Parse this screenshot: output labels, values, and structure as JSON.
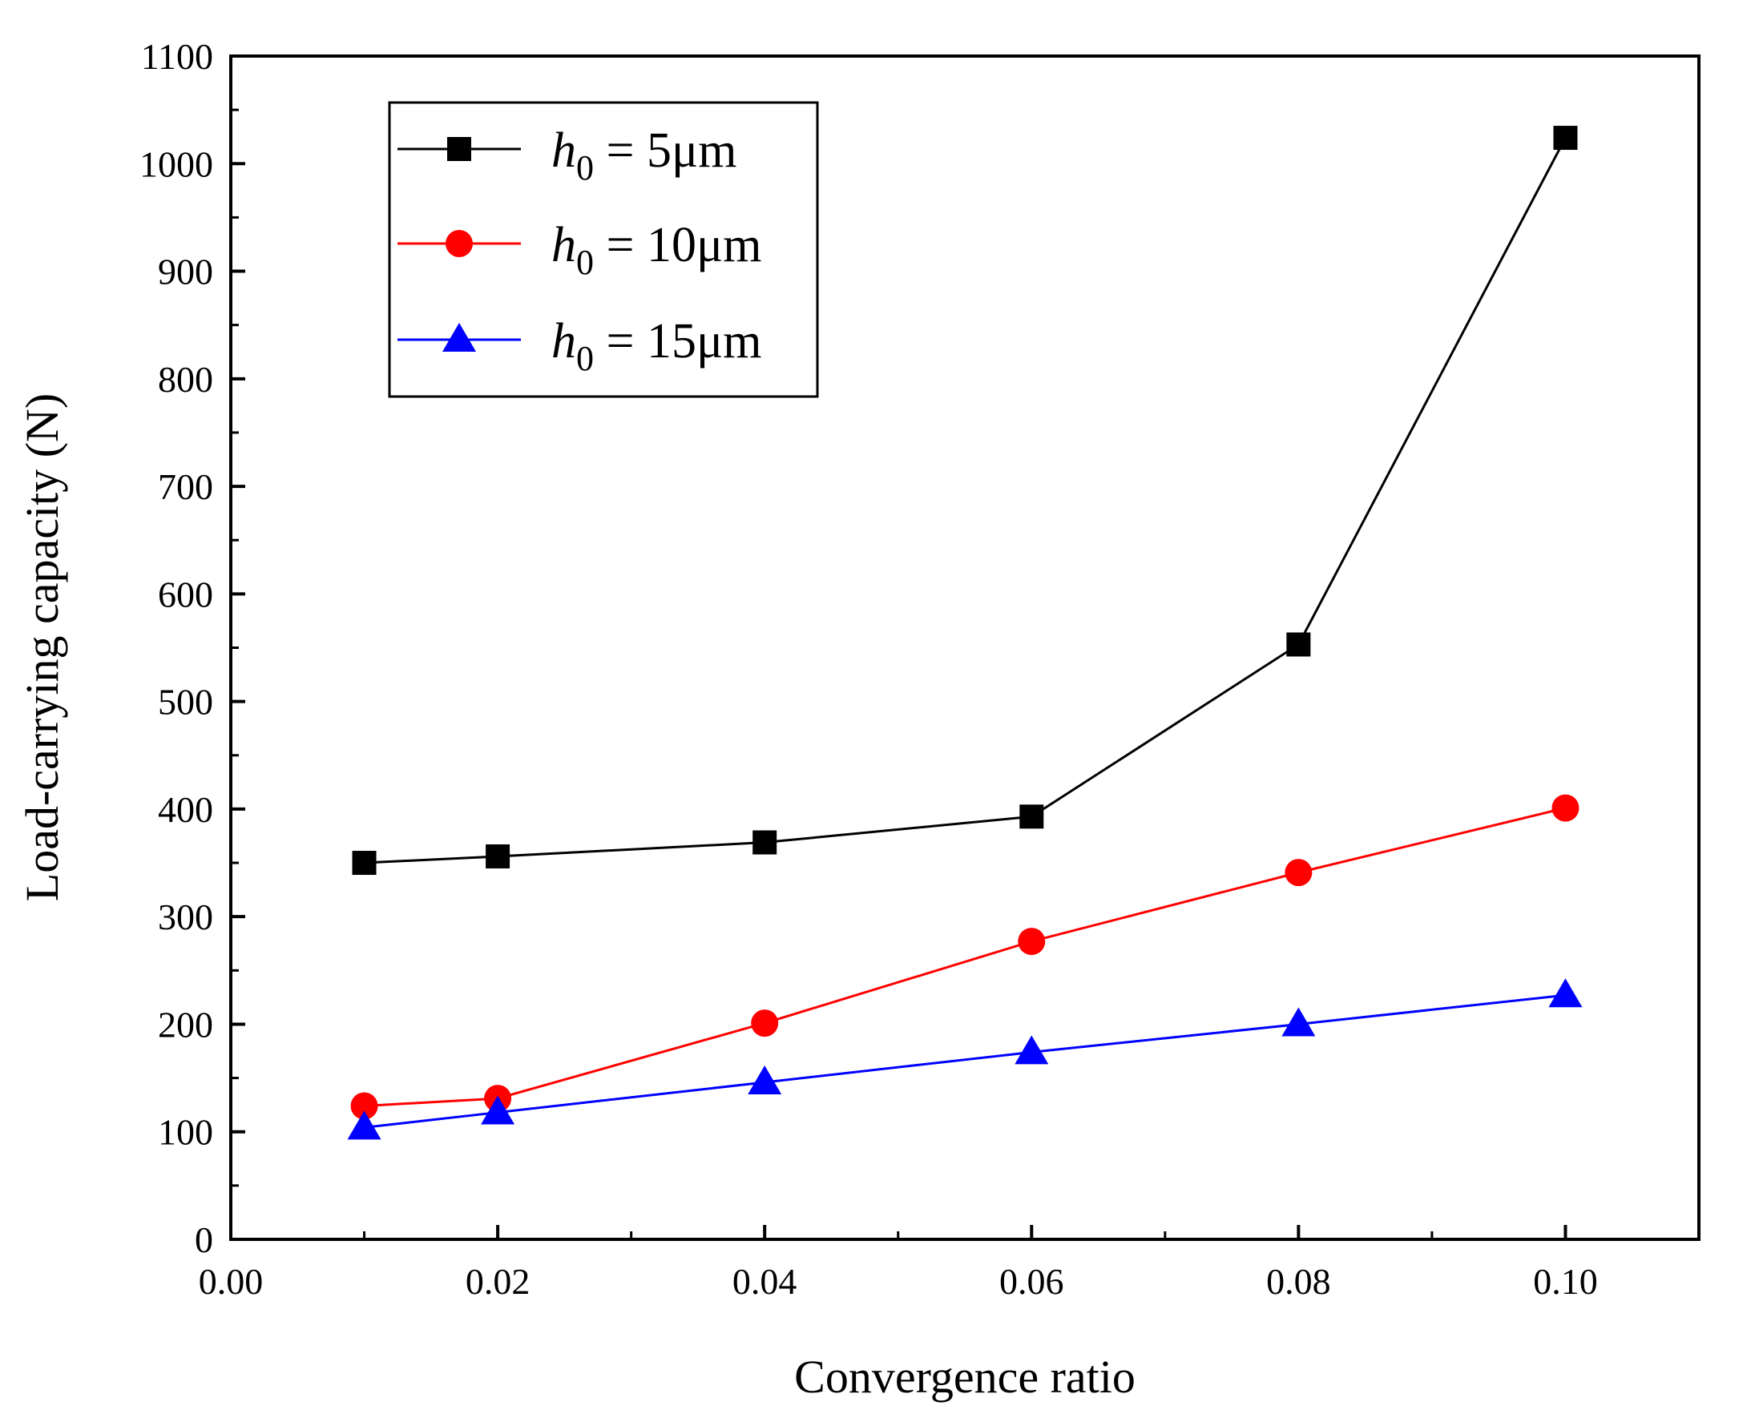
{
  "chart_data": {
    "type": "line",
    "title": "",
    "xlabel": "Convergence ratio",
    "ylabel": "Load-carrying capacity (N)",
    "xlim": [
      0.0,
      0.11
    ],
    "ylim": [
      0,
      1100
    ],
    "xticks": [
      0.0,
      0.02,
      0.04,
      0.06,
      0.08,
      0.1
    ],
    "xtick_labels": [
      "0.00",
      "0.02",
      "0.04",
      "0.06",
      "0.08",
      "0.10"
    ],
    "yticks": [
      0,
      100,
      200,
      300,
      400,
      500,
      600,
      700,
      800,
      900,
      1000,
      1100
    ],
    "ytick_labels": [
      "0",
      "100",
      "200",
      "300",
      "400",
      "500",
      "600",
      "700",
      "800",
      "900",
      "1000",
      "1100"
    ],
    "x": [
      0.01,
      0.02,
      0.04,
      0.06,
      0.08,
      0.1
    ],
    "grid": false,
    "legend_position": "top-left",
    "series": [
      {
        "name": "h0 = 5μm",
        "legend_var": "h",
        "legend_sub": "0",
        "legend_rest": " = 5μm",
        "color": "#000000",
        "marker": "square",
        "values": [
          350,
          356,
          369,
          393,
          553,
          1024
        ]
      },
      {
        "name": "h0 = 10μm",
        "legend_var": "h",
        "legend_sub": "0",
        "legend_rest": " = 10μm",
        "color": "#ff0000",
        "marker": "circle",
        "values": [
          124,
          131,
          201,
          277,
          341,
          401
        ]
      },
      {
        "name": "h0 = 15μm",
        "legend_var": "h",
        "legend_sub": "0",
        "legend_rest": " = 15μm",
        "color": "#0000ff",
        "marker": "triangle",
        "values": [
          104,
          118,
          146,
          174,
          200,
          227
        ]
      }
    ]
  }
}
